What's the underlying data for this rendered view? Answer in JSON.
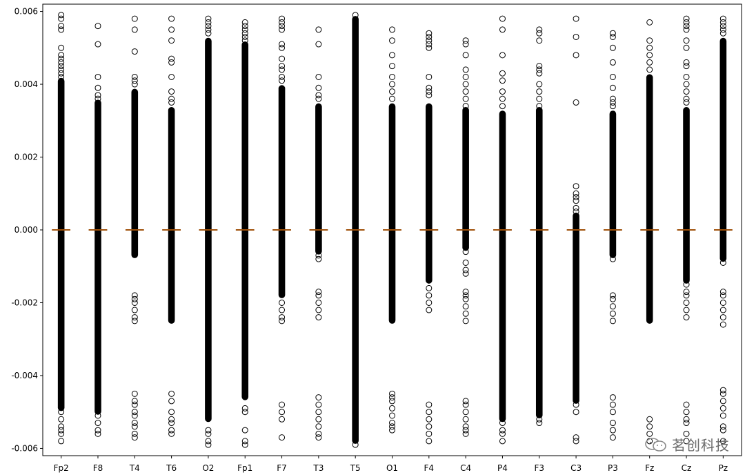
{
  "chart_data": {
    "type": "boxplot",
    "title": "",
    "xlabel": "",
    "ylabel": "",
    "ylim": [
      -0.0062,
      0.0062
    ],
    "yticks": [
      -0.006,
      -0.004,
      -0.002,
      0.0,
      0.002,
      0.004,
      0.006
    ],
    "ytick_labels": [
      "-0.006",
      "-0.004",
      "-0.002",
      "0.000",
      "0.002",
      "0.004",
      "0.006"
    ],
    "grid": false,
    "median_color": "#ff7f0e",
    "flier_color": "#000000",
    "categories": [
      "Fp2",
      "F8",
      "T4",
      "T6",
      "O2",
      "Fp1",
      "F7",
      "T3",
      "T5",
      "O1",
      "F4",
      "C4",
      "P4",
      "F3",
      "C3",
      "P3",
      "Fz",
      "Cz",
      "Pz"
    ],
    "series": [
      {
        "name": "Fp2",
        "median": 0,
        "dense_range": [
          -0.0049,
          0.0041
        ],
        "outliers": [
          0.0059,
          0.0058,
          0.0056,
          0.0055,
          0.005,
          0.0048,
          0.0047,
          0.0046,
          0.0045,
          0.0044,
          0.0043,
          0.0042,
          -0.005,
          -0.0052,
          -0.0054,
          -0.0055,
          -0.0056,
          -0.0058
        ]
      },
      {
        "name": "F8",
        "median": 0,
        "dense_range": [
          -0.005,
          0.0035
        ],
        "outliers": [
          0.0056,
          0.0051,
          0.0042,
          0.0039,
          0.0037,
          0.0036,
          -0.0051,
          -0.0053,
          -0.0055,
          -0.0056
        ]
      },
      {
        "name": "T4",
        "median": 0,
        "dense_range": [
          -0.0007,
          0.0038
        ],
        "outliers": [
          0.0058,
          0.0055,
          0.0049,
          0.0042,
          0.0041,
          0.004,
          -0.0018,
          -0.0019,
          -0.002,
          -0.0022,
          -0.0024,
          -0.0025,
          -0.0045,
          -0.0047,
          -0.0048,
          -0.005,
          -0.0051,
          -0.0053,
          -0.0054,
          -0.0056,
          -0.0057
        ]
      },
      {
        "name": "T6",
        "median": 0,
        "dense_range": [
          -0.0025,
          0.0033
        ],
        "outliers": [
          0.0058,
          0.0055,
          0.0052,
          0.0047,
          0.0046,
          0.0042,
          0.0038,
          0.0036,
          0.0035,
          -0.0022,
          -0.0023,
          -0.0045,
          -0.0047,
          -0.005,
          -0.0052,
          -0.0053,
          -0.0055,
          -0.0056
        ]
      },
      {
        "name": "O2",
        "median": 0,
        "dense_range": [
          -0.0052,
          0.0052
        ],
        "outliers": [
          0.0058,
          0.0057,
          0.0056,
          0.0055,
          0.0054,
          -0.0055,
          -0.0056,
          -0.0058,
          -0.0059
        ]
      },
      {
        "name": "Fp1",
        "median": 0,
        "dense_range": [
          -0.0046,
          0.0051
        ],
        "outliers": [
          0.0057,
          0.0056,
          0.0055,
          0.0054,
          0.0053,
          0.0052,
          -0.0049,
          -0.005,
          -0.0055,
          -0.0058,
          -0.0059
        ]
      },
      {
        "name": "F7",
        "median": 0,
        "dense_range": [
          -0.0018,
          0.0039
        ],
        "outliers": [
          0.0058,
          0.0057,
          0.0056,
          0.0055,
          0.0051,
          0.005,
          0.0047,
          0.0045,
          0.0044,
          0.0042,
          0.0041,
          -0.002,
          -0.0022,
          -0.0024,
          -0.0025,
          -0.0048,
          -0.005,
          -0.0052,
          -0.0057
        ]
      },
      {
        "name": "T3",
        "median": 0,
        "dense_range": [
          -0.0006,
          0.0034
        ],
        "outliers": [
          0.0055,
          0.0051,
          0.0042,
          0.0039,
          0.0037,
          0.0036,
          -0.0007,
          -0.0008,
          -0.0017,
          -0.0018,
          -0.002,
          -0.0022,
          -0.0024,
          -0.0046,
          -0.0048,
          -0.005,
          -0.0052,
          -0.0054,
          -0.0056,
          -0.0057
        ]
      },
      {
        "name": "T5",
        "median": 0,
        "dense_range": [
          -0.0058,
          0.0058
        ],
        "outliers": [
          0.0059,
          -0.0059
        ]
      },
      {
        "name": "O1",
        "median": 0,
        "dense_range": [
          -0.0025,
          0.0034
        ],
        "outliers": [
          0.0055,
          0.0052,
          0.0048,
          0.0045,
          0.0042,
          0.004,
          0.0038,
          0.0036,
          -0.0006,
          -0.0009,
          -0.0017,
          -0.0018,
          -0.002,
          -0.0022,
          -0.0045,
          -0.0046,
          -0.0047,
          -0.0049,
          -0.0051,
          -0.0053,
          -0.0054,
          -0.0055
        ]
      },
      {
        "name": "F4",
        "median": 0,
        "dense_range": [
          -0.0014,
          0.0034
        ],
        "outliers": [
          0.0054,
          0.0053,
          0.0052,
          0.0051,
          0.005,
          0.0042,
          0.0039,
          0.0038,
          0.0037,
          -0.0016,
          -0.0018,
          -0.002,
          -0.0022,
          -0.0048,
          -0.005,
          -0.0052,
          -0.0054,
          -0.0056,
          -0.0058
        ]
      },
      {
        "name": "C4",
        "median": 0,
        "dense_range": [
          -0.0005,
          0.0033
        ],
        "outliers": [
          0.0052,
          0.0051,
          0.0048,
          0.0044,
          0.0042,
          0.004,
          0.0038,
          0.0036,
          0.0034,
          -0.0006,
          -0.0009,
          -0.0011,
          -0.0012,
          -0.0017,
          -0.0018,
          -0.0019,
          -0.0021,
          -0.0023,
          -0.0025,
          -0.0047,
          -0.0048,
          -0.005,
          -0.0052,
          -0.0054,
          -0.0055,
          -0.0056
        ]
      },
      {
        "name": "P4",
        "median": 0,
        "dense_range": [
          -0.0052,
          0.0032
        ],
        "outliers": [
          0.0058,
          0.0055,
          0.0048,
          0.0043,
          0.0041,
          0.0038,
          0.0036,
          0.0034,
          -0.0053,
          -0.0055,
          -0.0056,
          -0.0058
        ]
      },
      {
        "name": "F3",
        "median": 0,
        "dense_range": [
          -0.0051,
          0.0033
        ],
        "outliers": [
          0.0055,
          0.0054,
          0.0052,
          0.0045,
          0.0044,
          0.0043,
          0.004,
          0.0038,
          0.0036,
          0.0034,
          -0.0052,
          -0.0053
        ]
      },
      {
        "name": "C3",
        "median": 0,
        "dense_range": [
          -0.0047,
          0.0004
        ],
        "outliers": [
          0.0058,
          0.0053,
          0.0048,
          0.0035,
          0.0012,
          0.001,
          0.0009,
          0.0008,
          0.0006,
          0.0005,
          -0.0048,
          -0.005,
          -0.0057,
          -0.0058
        ]
      },
      {
        "name": "P3",
        "median": 0,
        "dense_range": [
          -0.0007,
          0.0032
        ],
        "outliers": [
          0.0054,
          0.0053,
          0.005,
          0.0046,
          0.0042,
          0.0039,
          0.0036,
          0.0035,
          0.0034,
          -0.0008,
          -0.0018,
          -0.0019,
          -0.0021,
          -0.0023,
          -0.0025,
          -0.0046,
          -0.0048,
          -0.005,
          -0.0053,
          -0.0055,
          -0.0057
        ]
      },
      {
        "name": "Fz",
        "median": 0,
        "dense_range": [
          -0.0025,
          0.0042
        ],
        "outliers": [
          0.0057,
          0.0052,
          0.005,
          0.0048,
          0.0046,
          0.0044,
          -0.0004,
          -0.0008,
          -0.0011,
          -0.0013,
          -0.0015,
          -0.0017,
          -0.0019,
          -0.0021,
          -0.0023,
          -0.0052,
          -0.0054,
          -0.0056,
          -0.0058
        ]
      },
      {
        "name": "Cz",
        "median": 0,
        "dense_range": [
          -0.0014,
          0.0033
        ],
        "outliers": [
          0.0058,
          0.0057,
          0.0056,
          0.0055,
          0.0052,
          0.005,
          0.0046,
          0.0045,
          0.0042,
          0.004,
          0.0038,
          0.0036,
          0.0035,
          -0.0015,
          -0.0017,
          -0.0018,
          -0.002,
          -0.0022,
          -0.0024,
          -0.0048,
          -0.005,
          -0.0052,
          -0.0053,
          -0.0056,
          -0.0058
        ]
      },
      {
        "name": "Pz",
        "median": 0,
        "dense_range": [
          -0.0008,
          0.0052
        ],
        "outliers": [
          0.0058,
          0.0057,
          0.0056,
          0.0055,
          0.0054,
          -0.0009,
          -0.0017,
          -0.0018,
          -0.002,
          -0.0022,
          -0.0024,
          -0.0026,
          -0.0044,
          -0.0045,
          -0.0047,
          -0.0049,
          -0.0051,
          -0.0054,
          -0.0055,
          -0.0058
        ]
      }
    ]
  },
  "watermark": {
    "text": "茗创科技",
    "icon": "wechat-icon"
  }
}
